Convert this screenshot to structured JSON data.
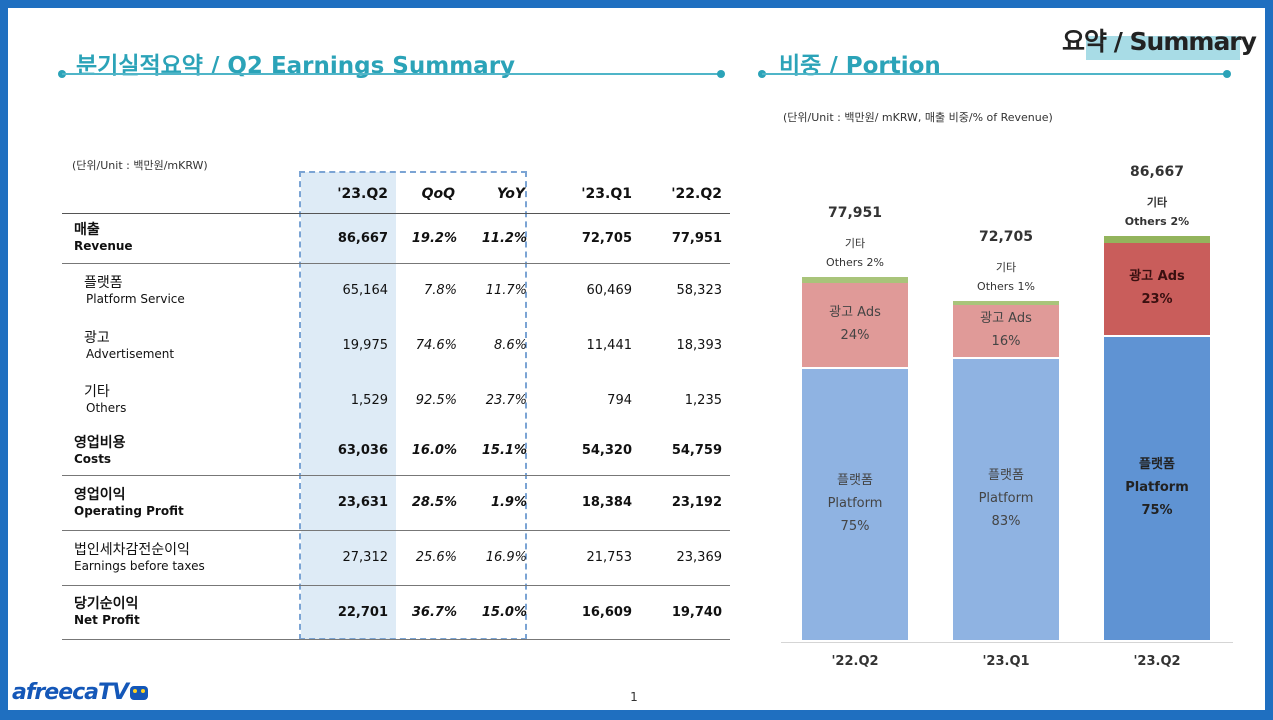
{
  "left": {
    "title": "분기실적요약 / Q2 Earnings Summary",
    "unit": "(단위/Unit : 백만원/mKRW)",
    "headers": [
      "'23.Q2",
      "QoQ",
      "YoY",
      "'23.Q1",
      "'22.Q2"
    ],
    "rows": [
      {
        "ko": "매출",
        "en": "Revenue",
        "q2_23": "86,667",
        "qoq": "19.2%",
        "yoy": "11.2%",
        "q1_23": "72,705",
        "q2_22": "77,951"
      },
      {
        "ko": "플랫폼",
        "en": "Platform Service",
        "q2_23": "65,164",
        "qoq": "7.8%",
        "yoy": "11.7%",
        "q1_23": "60,469",
        "q2_22": "58,323"
      },
      {
        "ko": "광고",
        "en": "Advertisement",
        "q2_23": "19,975",
        "qoq": "74.6%",
        "yoy": "8.6%",
        "q1_23": "11,441",
        "q2_22": "18,393"
      },
      {
        "ko": "기타",
        "en": "Others",
        "q2_23": "1,529",
        "qoq": "92.5%",
        "yoy": "23.7%",
        "q1_23": "794",
        "q2_22": "1,235"
      },
      {
        "ko": "영업비용",
        "en": "Costs",
        "q2_23": "63,036",
        "qoq": "16.0%",
        "yoy": "15.1%",
        "q1_23": "54,320",
        "q2_22": "54,759"
      },
      {
        "ko": "영업이익",
        "en": "Operating Profit",
        "q2_23": "23,631",
        "qoq": "28.5%",
        "yoy": "1.9%",
        "q1_23": "18,384",
        "q2_22": "23,192"
      },
      {
        "ko": "법인세차감전순이익",
        "en": "Earnings before taxes",
        "q2_23": "27,312",
        "qoq": "25.6%",
        "yoy": "16.9%",
        "q1_23": "21,753",
        "q2_22": "23,369"
      },
      {
        "ko": "당기순이익",
        "en": "Net Profit",
        "q2_23": "22,701",
        "qoq": "36.7%",
        "yoy": "15.0%",
        "q1_23": "16,609",
        "q2_22": "19,740"
      }
    ]
  },
  "right": {
    "title": "비중 / Portion",
    "unit": "(단위/Unit : 백만원/ mKRW, 매출 비중/% of Revenue)"
  },
  "corner_title": "요약 / Summary",
  "page_number": "1",
  "logo_text": "afreecaTV",
  "chart_data": {
    "type": "bar",
    "stacked": true,
    "title": "비중 / Portion",
    "categories": [
      "'22.Q2",
      "'23.Q1",
      "'23.Q2"
    ],
    "totals": [
      77951,
      72705,
      86667
    ],
    "total_labels": [
      "77,951",
      "72,705",
      "86,667"
    ],
    "ylim": [
      0,
      86667
    ],
    "series": [
      {
        "name": "플랫폼 Platform",
        "label_ko": "플랫폼",
        "label_en": "Platform",
        "values": [
          58323,
          60469,
          65164
        ],
        "pct_labels": [
          "75%",
          "83%",
          "75%"
        ],
        "colors": [
          "#8fb3e2",
          "#8fb3e2",
          "#5f93d3"
        ]
      },
      {
        "name": "광고 Ads",
        "label": "광고 Ads",
        "values": [
          18393,
          11441,
          19975
        ],
        "pct_labels": [
          "24%",
          "16%",
          "23%"
        ],
        "colors": [
          "#e09a98",
          "#e09a98",
          "#c95d5b"
        ]
      },
      {
        "name": "기타 Others",
        "label_ko": "기타",
        "label_en_list": [
          "Others 2%",
          "Others 1%",
          "Others 2%"
        ],
        "values": [
          1235,
          794,
          1529
        ],
        "colors": [
          "#a9c47a",
          "#a9c47a",
          "#93b45c"
        ]
      }
    ],
    "xlabel": "",
    "ylabel": "",
    "grid": false,
    "legend": "none"
  }
}
